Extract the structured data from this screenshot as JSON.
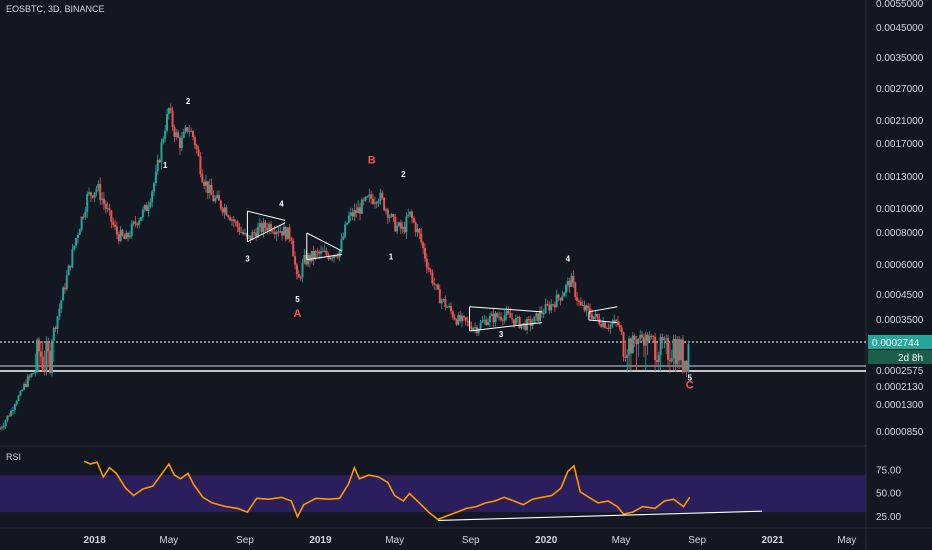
{
  "header": {
    "symbol_line": "EOSBTC, 3D, BINANCE"
  },
  "rsi_panel": {
    "label": "RSI"
  },
  "colors": {
    "background": "#131722",
    "up": "#26a69a",
    "down": "#ef5350",
    "rsi_line": "#ff9800",
    "rsi_band": "#2a1f5c",
    "annotation": "#ffffff",
    "abc_label": "#ef5350",
    "price_badge": "#26a69a",
    "axis_text": "#d1d4dc"
  },
  "chart_data": [
    {
      "type": "candlestick",
      "scale": "log",
      "title": "EOSBTC, 3D, BINANCE",
      "y_ticks": [
        "0.0055000",
        "0.0045000",
        "0.0035000",
        "0.0027000",
        "0.0021000",
        "0.0017000",
        "0.0013000",
        "0.0010000",
        "0.0008000",
        "0.0006000",
        "0.0004500",
        "0.0003500",
        "0.0002575",
        "0.0002130",
        "0.0001300",
        "0.0000850"
      ],
      "x_ticks": [
        "2018",
        "May",
        "Sep",
        "2019",
        "May",
        "Sep",
        "2020",
        "May",
        "Sep",
        "2021",
        "May"
      ],
      "last_price": "0.0002744",
      "countdown": "2d 8h",
      "horizontal_levels": [
        0.0002744,
        0.0002575
      ],
      "close_path": [
        [
          "2017-08-01",
          9e-05
        ],
        [
          "2017-08-20",
          0.00012
        ],
        [
          "2017-09-10",
          0.00022
        ],
        [
          "2017-10-01",
          0.00027
        ],
        [
          "2017-10-20",
          0.00026
        ],
        [
          "2017-11-10",
          0.00045
        ],
        [
          "2017-12-01",
          0.00075
        ],
        [
          "2017-12-20",
          0.0011
        ],
        [
          "2018-01-05",
          0.0012
        ],
        [
          "2018-01-20",
          0.001
        ],
        [
          "2018-02-05",
          0.0008
        ],
        [
          "2018-02-20",
          0.00075
        ],
        [
          "2018-03-10",
          0.0009
        ],
        [
          "2018-03-25",
          0.001
        ],
        [
          "2018-04-10",
          0.0013
        ],
        [
          "2018-04-25",
          0.002
        ],
        [
          "2018-05-01",
          0.0023
        ],
        [
          "2018-05-10",
          0.0019
        ],
        [
          "2018-05-20",
          0.0017
        ],
        [
          "2018-06-01",
          0.002
        ],
        [
          "2018-06-10",
          0.0018
        ],
        [
          "2018-06-25",
          0.0013
        ],
        [
          "2018-07-10",
          0.0011
        ],
        [
          "2018-08-01",
          0.001
        ],
        [
          "2018-08-20",
          0.00085
        ],
        [
          "2018-09-05",
          0.00075
        ],
        [
          "2018-09-20",
          0.00082
        ],
        [
          "2018-10-10",
          0.00086
        ],
        [
          "2018-10-30",
          0.00082
        ],
        [
          "2018-11-15",
          0.00078
        ],
        [
          "2018-11-25",
          0.0005
        ],
        [
          "2018-12-05",
          0.00062
        ],
        [
          "2018-12-25",
          0.00066
        ],
        [
          "2019-01-15",
          0.00066
        ],
        [
          "2019-02-01",
          0.00068
        ],
        [
          "2019-02-15",
          0.00092
        ],
        [
          "2019-03-01",
          0.00098
        ],
        [
          "2019-03-20",
          0.00108
        ],
        [
          "2019-04-05",
          0.00112
        ],
        [
          "2019-04-20",
          0.00098
        ],
        [
          "2019-05-01",
          0.00086
        ],
        [
          "2019-05-15",
          0.00082
        ],
        [
          "2019-05-25",
          0.00096
        ],
        [
          "2019-06-10",
          0.00078
        ],
        [
          "2019-06-25",
          0.00058
        ],
        [
          "2019-07-10",
          0.00045
        ],
        [
          "2019-07-25",
          0.0004
        ],
        [
          "2019-08-10",
          0.00035
        ],
        [
          "2019-08-25",
          0.00034
        ],
        [
          "2019-09-10",
          0.00032
        ],
        [
          "2019-09-25",
          0.00035
        ],
        [
          "2019-10-10",
          0.00036
        ],
        [
          "2019-10-25",
          0.00037
        ],
        [
          "2019-11-10",
          0.00035
        ],
        [
          "2019-11-25",
          0.00033
        ],
        [
          "2019-12-10",
          0.00034
        ],
        [
          "2019-12-25",
          0.00038
        ],
        [
          "2020-01-10",
          0.00041
        ],
        [
          "2020-01-25",
          0.00045
        ],
        [
          "2020-02-10",
          0.00052
        ],
        [
          "2020-02-25",
          0.0004
        ],
        [
          "2020-03-10",
          0.00038
        ],
        [
          "2020-03-25",
          0.00035
        ],
        [
          "2020-04-10",
          0.00033
        ],
        [
          "2020-04-25",
          0.00034
        ],
        [
          "2020-05-05",
          0.00028
        ],
        [
          "2020-05-20",
          0.00028
        ],
        [
          "2020-06-05",
          0.00029
        ],
        [
          "2020-06-25",
          0.00028
        ],
        [
          "2020-07-10",
          0.00027
        ],
        [
          "2020-07-25",
          0.00028
        ],
        [
          "2020-08-10",
          0.000265
        ],
        [
          "2020-08-20",
          0.0002744
        ]
      ],
      "annotations": [
        {
          "text": "1",
          "x": "2018-04-25",
          "price": 0.0014,
          "color": "white"
        },
        {
          "text": "2",
          "x": "2018-06-01",
          "price": 0.0024,
          "color": "white"
        },
        {
          "text": "3",
          "x": "2018-09-05",
          "price": 0.00062,
          "color": "white"
        },
        {
          "text": "4",
          "x": "2018-10-30",
          "price": 0.00102,
          "color": "white"
        },
        {
          "text": "5",
          "x": "2018-11-25",
          "price": 0.00042,
          "color": "white"
        },
        {
          "text": "A",
          "x": "2018-11-25",
          "price": 0.00036,
          "color": "red"
        },
        {
          "text": "B",
          "x": "2019-03-25",
          "price": 0.00145,
          "color": "red"
        },
        {
          "text": "1",
          "x": "2019-04-25",
          "price": 0.00063,
          "color": "white"
        },
        {
          "text": "2",
          "x": "2019-05-15",
          "price": 0.0013,
          "color": "white"
        },
        {
          "text": "3",
          "x": "2019-10-20",
          "price": 0.00029,
          "color": "white"
        },
        {
          "text": "4",
          "x": "2020-02-05",
          "price": 0.00062,
          "color": "white"
        },
        {
          "text": "5",
          "x": "2020-08-20",
          "price": 0.00023,
          "color": "white"
        },
        {
          "text": "C",
          "x": "2020-08-20",
          "price": 0.000205,
          "color": "red"
        }
      ],
      "drawings": [
        {
          "kind": "triangle",
          "from": "2018-09-05",
          "to": "2018-11-05",
          "upper": [
            0.00098,
            0.0009
          ],
          "lower": [
            0.00074,
            0.00088
          ]
        },
        {
          "kind": "triangle",
          "from": "2018-12-10",
          "to": "2019-02-05",
          "upper": [
            0.0008,
            0.00068
          ],
          "lower": [
            0.00063,
            0.00066
          ]
        },
        {
          "kind": "triangle",
          "from": "2019-08-30",
          "to": "2019-12-25",
          "upper": [
            0.0004,
            0.00038
          ],
          "lower": [
            0.00031,
            0.00034
          ]
        },
        {
          "kind": "triangle",
          "from": "2020-03-10",
          "to": "2020-04-25",
          "upper": [
            0.00038,
            0.0004
          ],
          "lower": [
            0.00035,
            0.00034
          ]
        }
      ]
    },
    {
      "type": "line",
      "title": "RSI",
      "y_ticks": [
        "75.00",
        "50.00",
        "25.00"
      ],
      "band": [
        30,
        70
      ],
      "ylim": [
        15,
        95
      ],
      "values": [
        [
          "2017-12-15",
          85
        ],
        [
          "2017-12-25",
          82
        ],
        [
          "2018-01-05",
          84
        ],
        [
          "2018-01-15",
          68
        ],
        [
          "2018-01-25",
          78
        ],
        [
          "2018-02-05",
          72
        ],
        [
          "2018-02-20",
          56
        ],
        [
          "2018-03-05",
          48
        ],
        [
          "2018-03-20",
          55
        ],
        [
          "2018-04-05",
          58
        ],
        [
          "2018-04-20",
          72
        ],
        [
          "2018-05-01",
          82
        ],
        [
          "2018-05-10",
          70
        ],
        [
          "2018-05-20",
          66
        ],
        [
          "2018-06-01",
          72
        ],
        [
          "2018-06-10",
          60
        ],
        [
          "2018-06-25",
          46
        ],
        [
          "2018-07-10",
          40
        ],
        [
          "2018-08-01",
          36
        ],
        [
          "2018-08-20",
          34
        ],
        [
          "2018-09-05",
          30
        ],
        [
          "2018-09-20",
          45
        ],
        [
          "2018-10-10",
          44
        ],
        [
          "2018-10-30",
          46
        ],
        [
          "2018-11-15",
          42
        ],
        [
          "2018-11-25",
          25
        ],
        [
          "2018-12-05",
          38
        ],
        [
          "2018-12-25",
          45
        ],
        [
          "2019-01-15",
          44
        ],
        [
          "2019-02-01",
          45
        ],
        [
          "2019-02-15",
          60
        ],
        [
          "2019-02-25",
          78
        ],
        [
          "2019-03-05",
          66
        ],
        [
          "2019-03-20",
          70
        ],
        [
          "2019-04-05",
          68
        ],
        [
          "2019-04-20",
          62
        ],
        [
          "2019-05-01",
          48
        ],
        [
          "2019-05-15",
          42
        ],
        [
          "2019-05-25",
          50
        ],
        [
          "2019-06-10",
          40
        ],
        [
          "2019-06-25",
          30
        ],
        [
          "2019-07-10",
          22
        ],
        [
          "2019-07-25",
          26
        ],
        [
          "2019-08-10",
          30
        ],
        [
          "2019-08-25",
          34
        ],
        [
          "2019-09-10",
          36
        ],
        [
          "2019-09-25",
          40
        ],
        [
          "2019-10-10",
          42
        ],
        [
          "2019-10-25",
          46
        ],
        [
          "2019-11-10",
          42
        ],
        [
          "2019-11-25",
          38
        ],
        [
          "2019-12-10",
          44
        ],
        [
          "2019-12-25",
          46
        ],
        [
          "2020-01-10",
          48
        ],
        [
          "2020-01-25",
          56
        ],
        [
          "2020-02-05",
          74
        ],
        [
          "2020-02-15",
          80
        ],
        [
          "2020-02-25",
          52
        ],
        [
          "2020-03-10",
          46
        ],
        [
          "2020-03-25",
          40
        ],
        [
          "2020-04-10",
          42
        ],
        [
          "2020-04-25",
          36
        ],
        [
          "2020-05-05",
          28
        ],
        [
          "2020-05-20",
          30
        ],
        [
          "2020-06-05",
          36
        ],
        [
          "2020-06-25",
          34
        ],
        [
          "2020-07-10",
          42
        ],
        [
          "2020-07-25",
          44
        ],
        [
          "2020-08-10",
          36
        ],
        [
          "2020-08-20",
          46
        ]
      ],
      "trendline": {
        "from": [
          "2019-07-10",
          21
        ],
        "to": [
          "2020-12-15",
          31
        ]
      }
    }
  ]
}
